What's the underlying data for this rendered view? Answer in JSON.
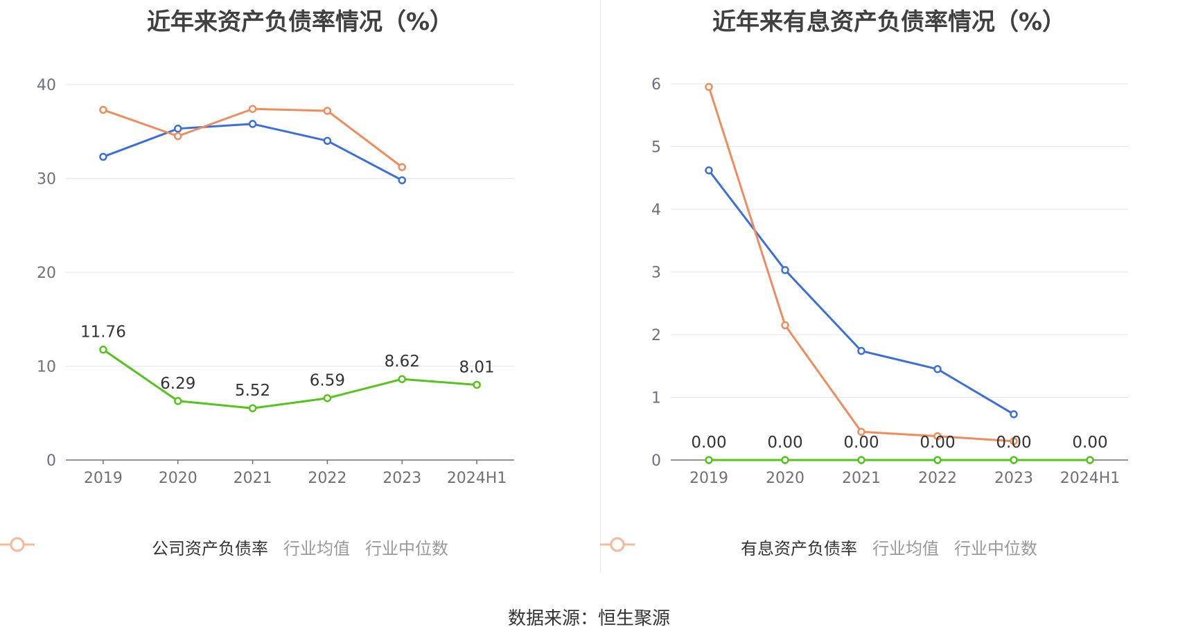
{
  "source_text": "数据来源：恒生聚源",
  "chart_data": [
    {
      "type": "line",
      "title": "近年来资产负债率情况（%）",
      "categories": [
        "2019",
        "2020",
        "2021",
        "2022",
        "2023",
        "2024H1"
      ],
      "ylim": [
        0,
        40
      ],
      "yticks": [
        0,
        10,
        20,
        30,
        40
      ],
      "grid": true,
      "legend_position": "bottom",
      "series": [
        {
          "name": "公司资产负债率",
          "color": "#52c41a",
          "values": [
            11.76,
            6.29,
            5.52,
            6.59,
            8.62,
            8.01
          ],
          "labels": [
            "11.76",
            "6.29",
            "5.52",
            "6.59",
            "8.62",
            "8.01"
          ]
        },
        {
          "name": "行业均值",
          "color": "#3a6fdb",
          "legend_color": "#8fb0ea",
          "values": [
            32.3,
            35.3,
            35.8,
            34.0,
            29.8,
            null
          ]
        },
        {
          "name": "行业中位数",
          "color": "#f08c5a",
          "legend_color": "#f6b99a",
          "values": [
            37.3,
            34.5,
            37.4,
            37.2,
            31.2,
            null
          ]
        }
      ]
    },
    {
      "type": "line",
      "title": "近年来有息资产负债率情况（%）",
      "categories": [
        "2019",
        "2020",
        "2021",
        "2022",
        "2023",
        "2024H1"
      ],
      "ylim": [
        0,
        6
      ],
      "yticks": [
        0,
        1,
        2,
        3,
        4,
        5,
        6
      ],
      "grid": true,
      "legend_position": "bottom",
      "series": [
        {
          "name": "有息资产负债率",
          "color": "#52c41a",
          "values": [
            0.0,
            0.0,
            0.0,
            0.0,
            0.0,
            0.0
          ],
          "labels": [
            "0.00",
            "0.00",
            "0.00",
            "0.00",
            "0.00",
            "0.00"
          ]
        },
        {
          "name": "行业均值",
          "color": "#3a6fdb",
          "legend_color": "#8fb0ea",
          "values": [
            4.62,
            3.03,
            1.74,
            1.45,
            0.73,
            null
          ]
        },
        {
          "name": "行业中位数",
          "color": "#f08c5a",
          "legend_color": "#f6b99a",
          "values": [
            5.95,
            2.15,
            0.45,
            0.38,
            0.3,
            null
          ]
        }
      ]
    }
  ]
}
